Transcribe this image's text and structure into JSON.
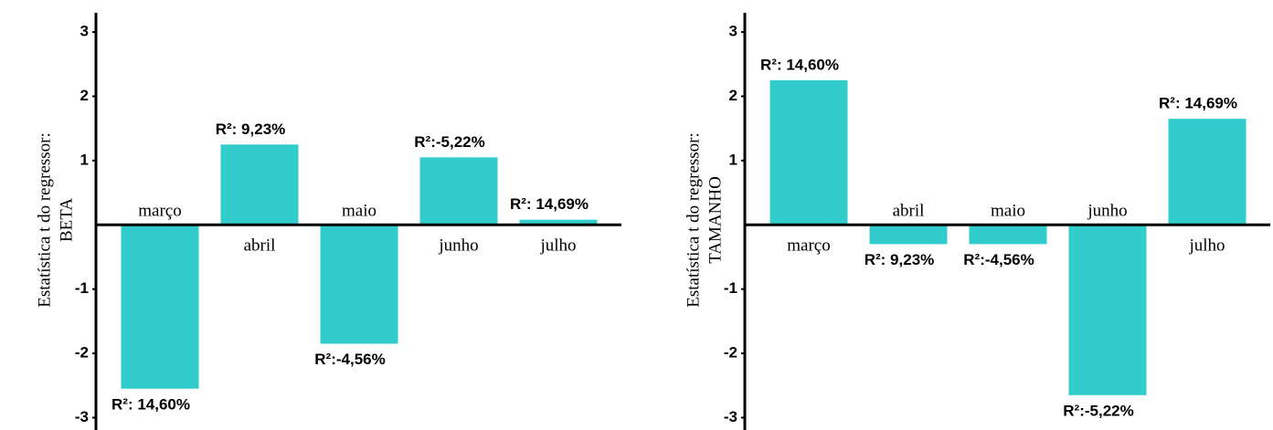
{
  "chart_data": [
    {
      "type": "bar",
      "ylabel": [
        "Estatística t do regressor:",
        "BETA"
      ],
      "categories": [
        "março",
        "abril",
        "maio",
        "junho",
        "julho"
      ],
      "values": [
        -2.55,
        1.25,
        -1.85,
        1.05,
        0.08
      ],
      "annotations": [
        "R²: 14,60%",
        "R²: 9,23%",
        "R²:-4,56%",
        "R²:-5,22%",
        "R²: 14,69%"
      ],
      "color": "#33cccc",
      "ylim": [
        -3.15,
        3.3
      ],
      "yticks": [
        -3,
        -2,
        -1,
        1,
        2,
        3
      ]
    },
    {
      "type": "bar",
      "ylabel": [
        "Estatística t do regressor:",
        "TAMANHO"
      ],
      "categories": [
        "março",
        "abril",
        "maio",
        "junho",
        "julho"
      ],
      "values": [
        2.25,
        -0.3,
        -0.3,
        -2.65,
        1.65
      ],
      "annotations": [
        "R²: 14,60%",
        "R²: 9,23%",
        "R²:-4,56%",
        "R²:-5,22%",
        "R²: 14,69%"
      ],
      "color": "#33cccc",
      "ylim": [
        -3.15,
        3.3
      ],
      "yticks": [
        -3,
        -2,
        -1,
        1,
        2,
        3
      ]
    }
  ]
}
